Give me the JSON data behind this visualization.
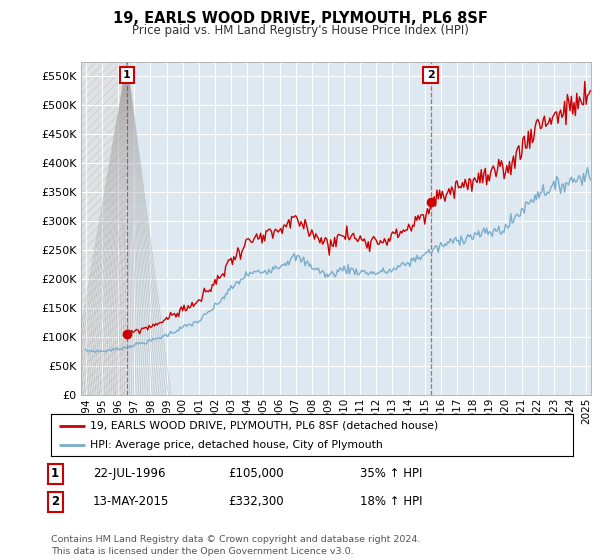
{
  "title": "19, EARLS WOOD DRIVE, PLYMOUTH, PL6 8SF",
  "subtitle": "Price paid vs. HM Land Registry's House Price Index (HPI)",
  "ylim": [
    0,
    575000
  ],
  "yticks": [
    0,
    50000,
    100000,
    150000,
    200000,
    250000,
    300000,
    350000,
    400000,
    450000,
    500000,
    550000
  ],
  "ytick_labels": [
    "£0",
    "£50K",
    "£100K",
    "£150K",
    "£200K",
    "£250K",
    "£300K",
    "£350K",
    "£400K",
    "£450K",
    "£500K",
    "£550K"
  ],
  "xlim_start": 1993.7,
  "xlim_end": 2025.3,
  "sale1_date_num": 1996.55,
  "sale1_price": 105000,
  "sale2_date_num": 2015.36,
  "sale2_price": 332300,
  "red_color": "#cc0000",
  "blue_color": "#7aadcc",
  "grid_color": "#cccccc",
  "bg_color": "#ffffff",
  "plot_bg_color": "#dde8f0",
  "hatch_bg_color": "#e8e8e8",
  "legend_label_red": "19, EARLS WOOD DRIVE, PLYMOUTH, PL6 8SF (detached house)",
  "legend_label_blue": "HPI: Average price, detached house, City of Plymouth",
  "sale1_date_str": "22-JUL-1996",
  "sale1_price_str": "£105,000",
  "sale1_hpi_str": "35% ↑ HPI",
  "sale2_date_str": "13-MAY-2015",
  "sale2_price_str": "£332,300",
  "sale2_hpi_str": "18% ↑ HPI",
  "footnote": "Contains HM Land Registry data © Crown copyright and database right 2024.\nThis data is licensed under the Open Government Licence v3.0.",
  "xtick_years": [
    1994,
    1995,
    1996,
    1997,
    1998,
    1999,
    2000,
    2001,
    2002,
    2003,
    2004,
    2005,
    2006,
    2007,
    2008,
    2009,
    2010,
    2011,
    2012,
    2013,
    2014,
    2015,
    2016,
    2017,
    2018,
    2019,
    2020,
    2021,
    2022,
    2023,
    2024,
    2025
  ]
}
